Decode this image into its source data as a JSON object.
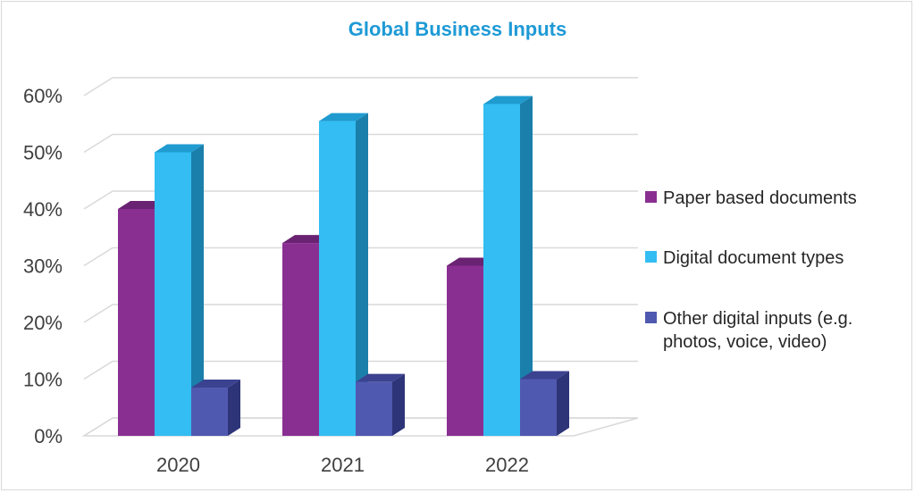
{
  "chart_data": {
    "type": "bar",
    "title": "Global Business Inputs",
    "categories": [
      "2020",
      "2021",
      "2022"
    ],
    "series": [
      {
        "name": "Paper based documents",
        "values": [
          40,
          34,
          30
        ]
      },
      {
        "name": "Digital document types",
        "values": [
          50,
          55.5,
          58.5
        ]
      },
      {
        "name": "Other digital inputs (e.g. photos, voice, video)",
        "values": [
          8.5,
          9.5,
          10
        ]
      }
    ],
    "ylim": [
      0,
      60
    ],
    "yticks": [
      "0%",
      "10%",
      "20%",
      "30%",
      "40%",
      "50%",
      "60%"
    ],
    "xlabel": "",
    "ylabel": "",
    "grid": true,
    "legend_position": "right",
    "three_d": true
  },
  "colors": {
    "title": "#1e9ad6",
    "series": [
      "#8a2f92",
      "#33bdf2",
      "#5059b0"
    ],
    "series_top": [
      "#6a2272",
      "#1f9bd0",
      "#3b4290"
    ],
    "series_side": [
      "#5b1c62",
      "#1a7fab",
      "#2e3478"
    ],
    "grid": "#d9d9d9"
  },
  "legend": {
    "lines": [
      [
        "Paper based documents"
      ],
      [
        "Digital document types"
      ],
      [
        "Other digital inputs (e.g.",
        "photos, voice, video)"
      ]
    ]
  }
}
